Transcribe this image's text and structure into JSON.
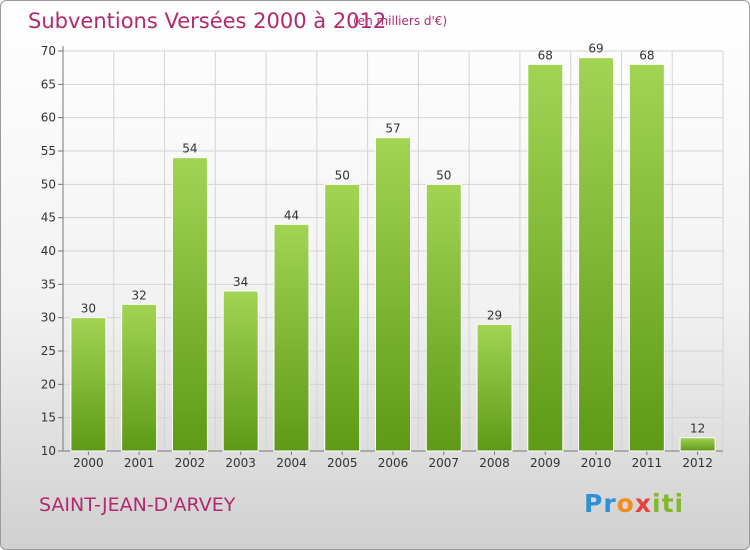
{
  "header": {
    "title": "Subventions Versées 2000 à 2012",
    "unit_note": "(en milliers d'€)"
  },
  "footer": {
    "place_name": "SAINT-JEAN-D'ARVEY",
    "logo": {
      "letters": [
        "P",
        "r",
        "o",
        "x",
        "i",
        "t",
        "i"
      ],
      "colors": [
        "#2f8fd6",
        "#2f8fd6",
        "#f28c1e",
        "#e8403a",
        "#84b82a",
        "#84b82a",
        "#84b82a"
      ]
    }
  },
  "colors": {
    "bar_light": "#9fd24f",
    "bar_dark": "#5f9b18",
    "grid": "#d4d4d4",
    "text": "#b3286e"
  },
  "chart_data": {
    "type": "bar",
    "title": "Subventions Versées 2000 à 2012",
    "subtitle": "(en milliers d'€)",
    "categories": [
      "2000",
      "2001",
      "2002",
      "2003",
      "2004",
      "2005",
      "2006",
      "2007",
      "2008",
      "2009",
      "2010",
      "2011",
      "2012"
    ],
    "values": [
      30,
      32,
      54,
      34,
      44,
      50,
      57,
      50,
      29,
      68,
      69,
      68,
      12
    ],
    "ylim": [
      10,
      70
    ],
    "yticks": [
      10,
      15,
      20,
      25,
      30,
      35,
      40,
      45,
      50,
      55,
      60,
      65,
      70
    ],
    "grid": true,
    "data_labels": true
  }
}
